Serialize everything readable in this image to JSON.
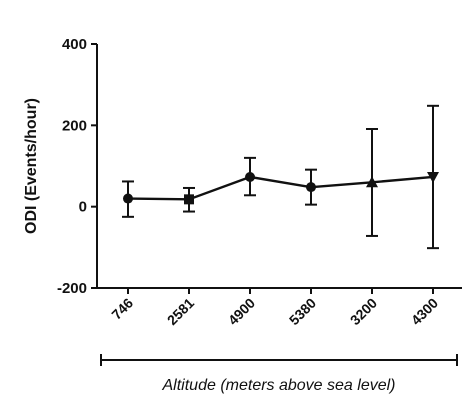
{
  "chart_data": {
    "type": "line",
    "title": "",
    "xlabel": "Altitude (meters above sea level)",
    "ylabel": "ODI (Events/hour)",
    "ylim": [
      -200,
      400
    ],
    "yticks": [
      -200,
      0,
      200,
      400
    ],
    "categories": [
      "746",
      "2581",
      "4900",
      "5380",
      "3200",
      "4300"
    ],
    "series": [
      {
        "values": [
          20,
          18,
          73,
          48,
          60,
          73
        ],
        "error_low": [
          -25,
          -12,
          28,
          5,
          -72,
          -102
        ],
        "error_high": [
          62,
          46,
          120,
          91,
          191,
          248
        ],
        "markers": [
          "circle",
          "square",
          "circle",
          "circle",
          "triangle-up",
          "triangle-down"
        ],
        "color": "#111111"
      }
    ],
    "grid": false,
    "legend": "none"
  }
}
